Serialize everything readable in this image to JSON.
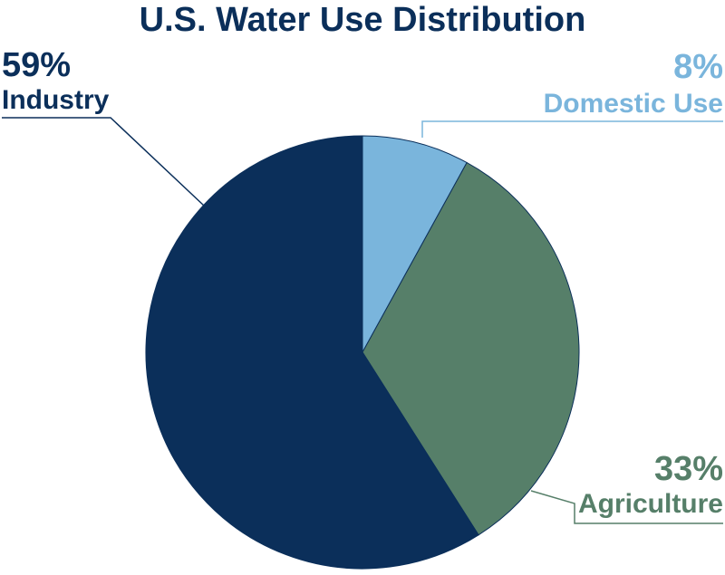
{
  "chart_data": {
    "type": "pie",
    "title": "U.S. Water Use Distribution",
    "slices": [
      {
        "name": "Domestic Use",
        "value": 8,
        "label": "8%",
        "color": "#7ab5dc"
      },
      {
        "name": "Agriculture",
        "value": 33,
        "label": "33%",
        "color": "#567f69"
      },
      {
        "name": "Industry",
        "value": 59,
        "label": "59%",
        "color": "#0b2f5a"
      }
    ],
    "start_angle_deg": 0,
    "direction": "clockwise",
    "legend": "none"
  },
  "colors": {
    "title": "#0b2f5a",
    "slice_outline": "#0b2f5a"
  }
}
